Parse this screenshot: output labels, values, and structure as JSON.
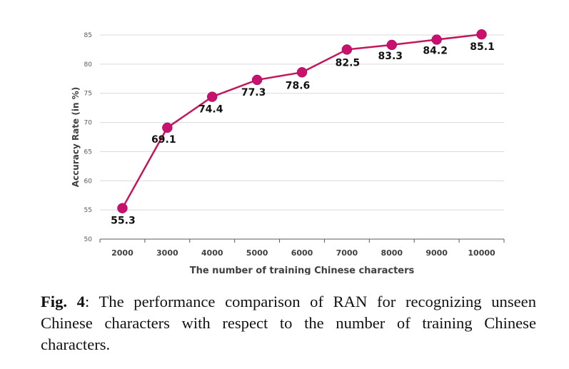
{
  "chart_data": {
    "type": "line",
    "categories": [
      "2000",
      "3000",
      "4000",
      "5000",
      "6000",
      "7000",
      "8000",
      "9000",
      "10000"
    ],
    "series": [
      {
        "values": [
          55.3,
          69.1,
          74.4,
          77.3,
          78.6,
          82.5,
          83.3,
          84.2,
          85.1
        ],
        "labels": [
          "55.3",
          "69.1",
          "74.4",
          "77.3",
          "78.6",
          "82.5",
          "83.3",
          "84.2",
          "85.1"
        ]
      }
    ],
    "xlabel": "The number of training Chinese characters",
    "ylabel": "Accuracy Rate (in %)",
    "ylim": [
      50,
      85
    ],
    "yticks": [
      "50",
      "55",
      "60",
      "65",
      "70",
      "75",
      "80",
      "85"
    ],
    "grid": true,
    "line_color": "#c2185b",
    "marker_color": "#c8106e"
  },
  "caption": {
    "label": "Fig. 4",
    "text": ": The performance comparison of RAN for recognizing unseen Chinese characters with respect to the number of training Chinese characters."
  }
}
